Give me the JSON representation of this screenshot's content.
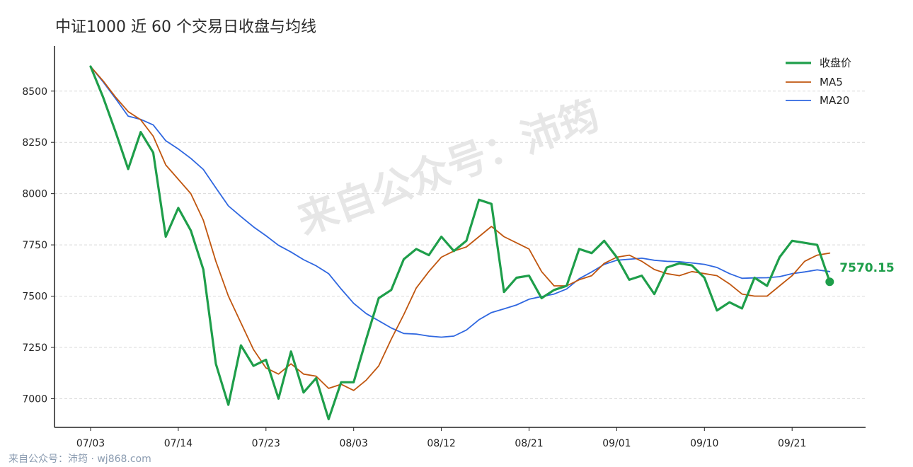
{
  "title": "中证1000 近 60 个交易日收盘与均线",
  "watermark": "来自公众号：沛筠",
  "footer": "来自公众号：沛筠 · wj868.com",
  "colors": {
    "close": "#1e9e4a",
    "ma5": "#c0560f",
    "ma20": "#2f67e0",
    "grid": "#d9d9d9",
    "axis": "#222222"
  },
  "chart_data": {
    "type": "line",
    "title": "中证1000 近 60 个交易日收盘与均线",
    "xlabel": "",
    "ylabel": "",
    "ylim": [
      6860,
      8720
    ],
    "yticks": [
      7000,
      7250,
      7500,
      7750,
      8000,
      8250,
      8500
    ],
    "xtick_labels": [
      "07/03",
      "07/14",
      "07/23",
      "08/03",
      "08/12",
      "08/21",
      "09/01",
      "09/10",
      "09/21"
    ],
    "xtick_index": [
      0,
      7,
      14,
      21,
      28,
      35,
      42,
      49,
      56
    ],
    "grid": "horizontal dashed",
    "legend_position": "top-right",
    "last_value_label": "7570.15",
    "series": [
      {
        "name": "收盘价",
        "values": [
          8620,
          8470,
          8300,
          8120,
          8300,
          8200,
          7790,
          7930,
          7820,
          7630,
          7170,
          6970,
          7260,
          7160,
          7190,
          7000,
          7230,
          7030,
          7100,
          6900,
          7080,
          7080,
          7290,
          7490,
          7530,
          7680,
          7730,
          7700,
          7790,
          7720,
          7770,
          7970,
          7950,
          7520,
          7590,
          7600,
          7490,
          7530,
          7550,
          7730,
          7710,
          7770,
          7690,
          7580,
          7600,
          7510,
          7640,
          7660,
          7650,
          7590,
          7430,
          7470,
          7440,
          7590,
          7550,
          7690,
          7770,
          7760,
          7750,
          7570.15
        ]
      },
      {
        "name": "MA5",
        "values": [
          8620,
          8550,
          8470,
          8400,
          8360,
          8280,
          8140,
          8070,
          8000,
          7870,
          7670,
          7500,
          7370,
          7240,
          7150,
          7120,
          7170,
          7120,
          7110,
          7050,
          7070,
          7040,
          7090,
          7160,
          7290,
          7410,
          7540,
          7620,
          7690,
          7720,
          7740,
          7790,
          7840,
          7790,
          7760,
          7730,
          7620,
          7550,
          7550,
          7580,
          7600,
          7660,
          7690,
          7700,
          7670,
          7630,
          7610,
          7600,
          7620,
          7610,
          7600,
          7560,
          7510,
          7500,
          7500,
          7550,
          7600,
          7670,
          7700,
          7710
        ]
      },
      {
        "name": "MA20",
        "values": [
          8620,
          8545,
          8463,
          8378,
          8362,
          8335,
          8258,
          8218,
          8172,
          8118,
          8028,
          7940,
          7888,
          7838,
          7795,
          7748,
          7715,
          7678,
          7648,
          7610,
          7535,
          7465,
          7415,
          7380,
          7345,
          7318,
          7315,
          7305,
          7300,
          7305,
          7335,
          7385,
          7420,
          7438,
          7457,
          7485,
          7498,
          7510,
          7535,
          7585,
          7618,
          7655,
          7675,
          7680,
          7685,
          7675,
          7670,
          7668,
          7662,
          7655,
          7640,
          7610,
          7587,
          7589,
          7590,
          7595,
          7610,
          7618,
          7628,
          7620
        ]
      }
    ]
  }
}
